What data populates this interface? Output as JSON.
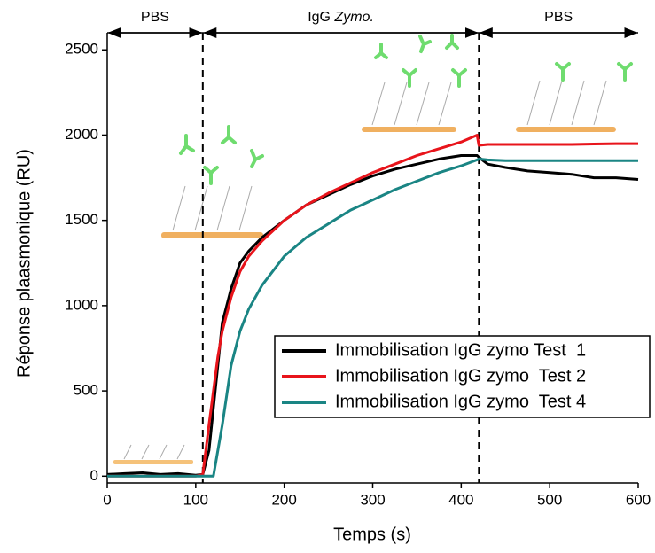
{
  "chart_data": {
    "type": "line",
    "xlabel": "Temps (s)",
    "ylabel": "Réponse plaasmonique (RU)",
    "x": [
      0,
      20,
      40,
      60,
      80,
      100,
      108,
      115,
      120,
      125,
      130,
      140,
      150,
      160,
      175,
      200,
      225,
      250,
      275,
      300,
      325,
      350,
      375,
      400,
      418,
      420,
      430,
      450,
      475,
      500,
      525,
      550,
      575,
      600
    ],
    "series": [
      {
        "name": "Immobilisation IgG zymo Test  1",
        "color": "#000000",
        "values": [
          10,
          15,
          20,
          10,
          15,
          5,
          10,
          150,
          400,
          650,
          900,
          1100,
          1250,
          1320,
          1400,
          1500,
          1590,
          1650,
          1710,
          1760,
          1800,
          1830,
          1860,
          1880,
          1880,
          1870,
          1830,
          1810,
          1790,
          1780,
          1770,
          1750,
          1750,
          1740
        ]
      },
      {
        "name": "Immobilisation IgG zymo  Test 2",
        "color": "#e8141b",
        "values": [
          0,
          0,
          0,
          0,
          0,
          0,
          10,
          300,
          500,
          700,
          850,
          1050,
          1200,
          1290,
          1380,
          1500,
          1590,
          1660,
          1720,
          1780,
          1830,
          1880,
          1920,
          1960,
          2000,
          1940,
          1945,
          1945,
          1945,
          1945,
          1945,
          1948,
          1950,
          1950
        ]
      },
      {
        "name": "Immobilisation IgG zymo  Test 4",
        "color": "#1a8584",
        "values": [
          0,
          0,
          0,
          0,
          0,
          0,
          0,
          0,
          0,
          150,
          300,
          650,
          850,
          980,
          1120,
          1290,
          1400,
          1480,
          1560,
          1620,
          1680,
          1730,
          1780,
          1820,
          1855,
          1860,
          1855,
          1850,
          1850,
          1850,
          1850,
          1850,
          1850,
          1850
        ]
      }
    ],
    "xlim": [
      0,
      600
    ],
    "ylim": [
      -40,
      2600
    ],
    "xticks": [
      0,
      100,
      200,
      300,
      400,
      500,
      600
    ],
    "yticks": [
      0,
      500,
      1000,
      1500,
      2000,
      2500
    ],
    "grid": false,
    "legend": "center right",
    "vlines": [
      108,
      420
    ],
    "regions": [
      {
        "label": "PBS",
        "start": 0,
        "end": 108
      },
      {
        "label": "IgG",
        "label_italic": "Zymo.",
        "start": 108,
        "end": 420
      },
      {
        "label": "PBS",
        "start": 420,
        "end": 600
      }
    ]
  }
}
